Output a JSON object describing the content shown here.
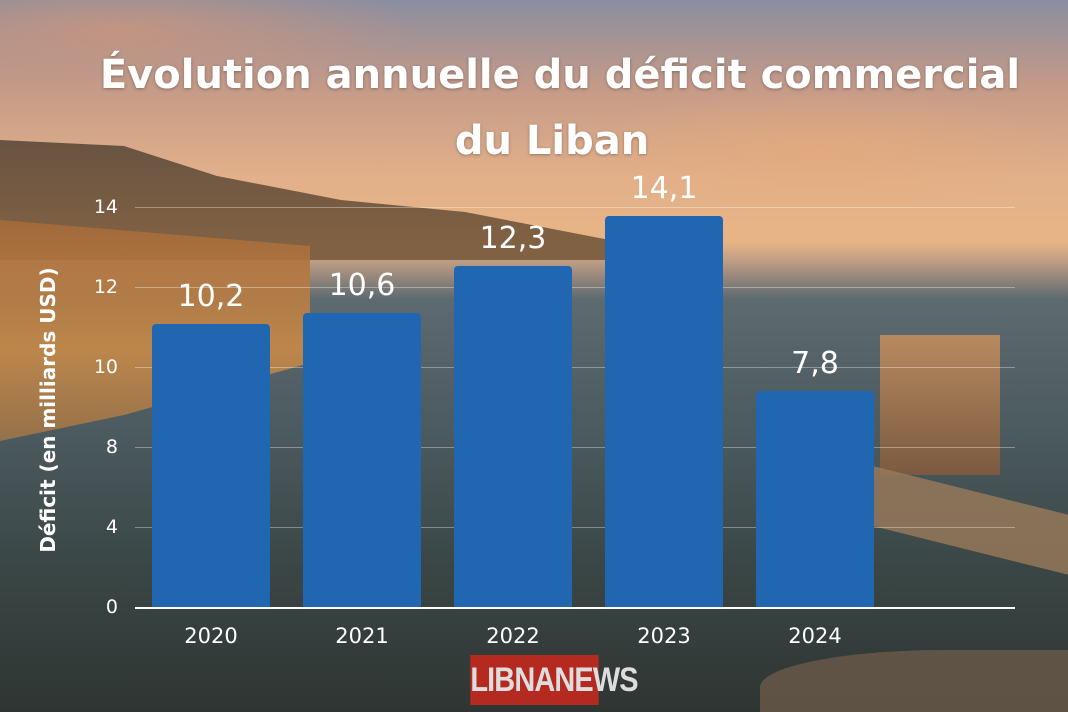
{
  "chart_data": {
    "type": "bar",
    "title": "Évolution annuelle du déficit commercial du Liban",
    "title_lines": [
      "Évolution annuelle du déficit commercial",
      "du Liban"
    ],
    "ylabel": "Déficit (en milliards USD)",
    "xlabel": "",
    "categories": [
      "2020",
      "2021",
      "2022",
      "2023",
      "2024"
    ],
    "values": [
      10.2,
      10.6,
      12.3,
      14.1,
      7.8
    ],
    "data_labels": [
      "10,2",
      "10,6",
      "12,3",
      "14,1",
      "7,8"
    ],
    "yticks": [
      "0",
      "4",
      "8",
      "10",
      "12",
      "14"
    ],
    "ylim": [
      0,
      14
    ],
    "grid": true,
    "bar_color": "#2166b0"
  },
  "logo": "LIBNANEWS"
}
